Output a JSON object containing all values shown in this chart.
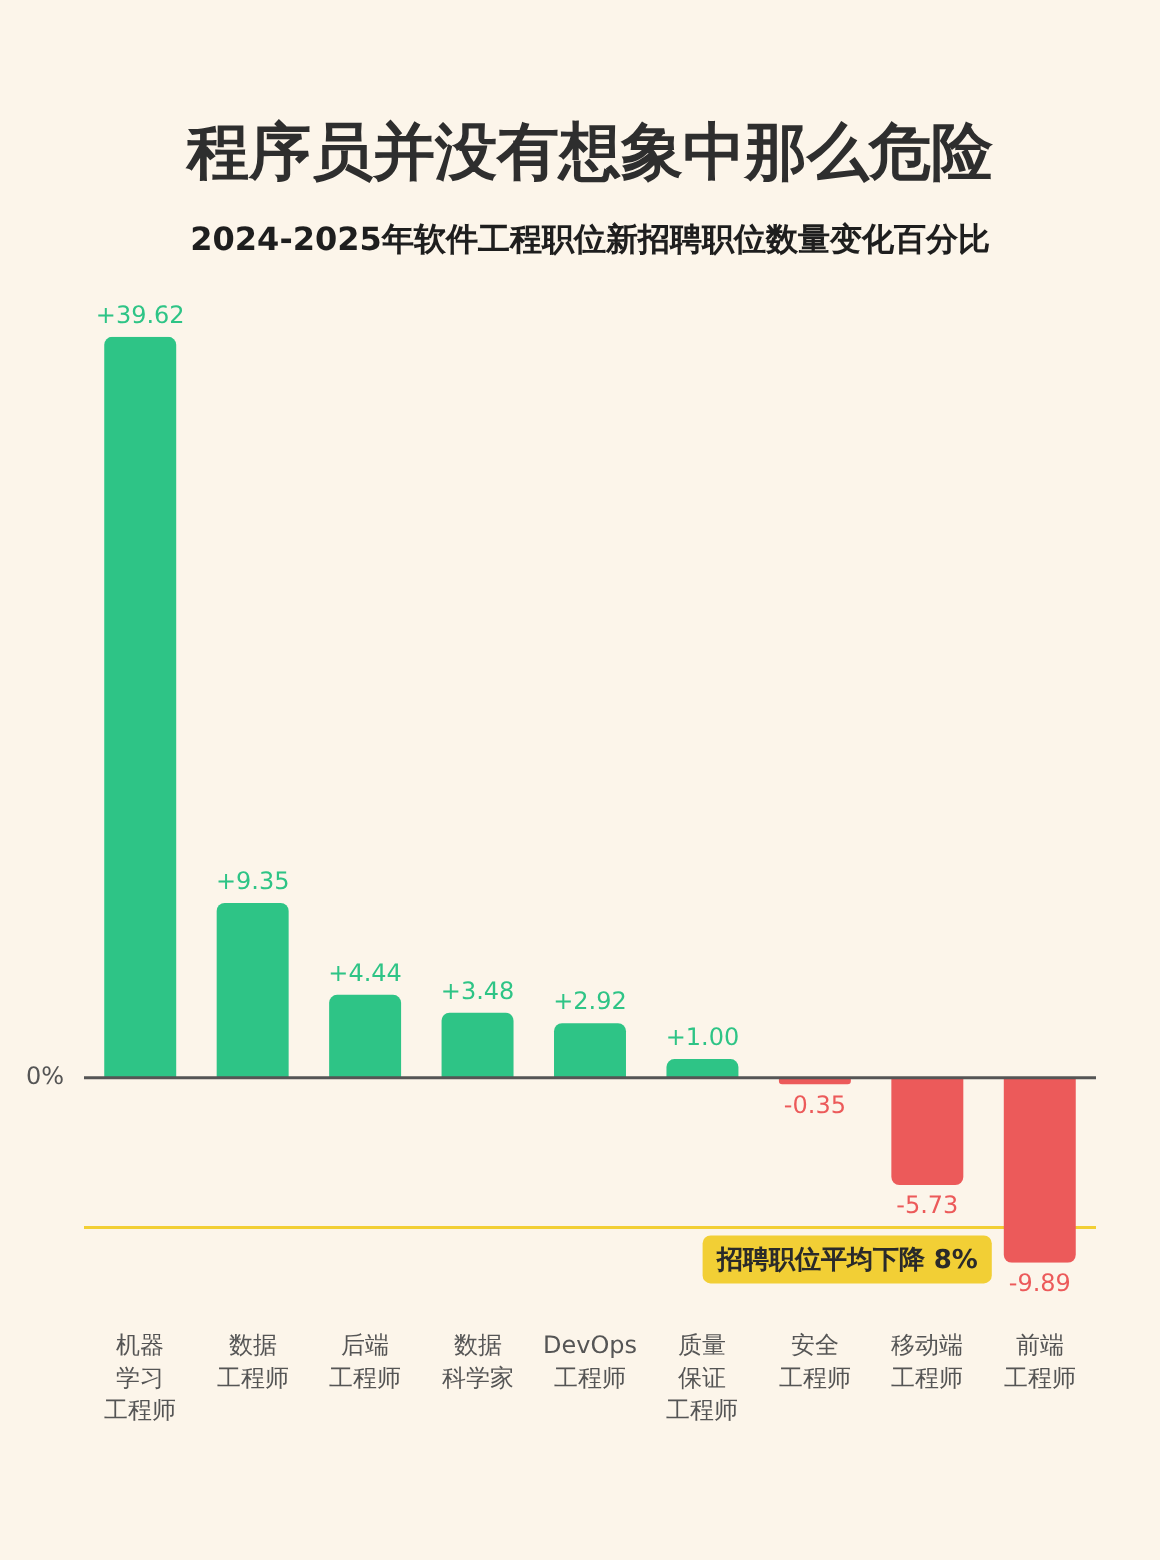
{
  "chart_data": {
    "type": "bar",
    "title": "程序员并没有想象中那么危险",
    "subtitle": "2024-2025年软件工程职位新招聘职位数量变化百分比",
    "categories": [
      "机器学习工程师",
      "数据工程师",
      "后端工程师",
      "数据科学家",
      "DevOps工程师",
      "质量保证工程师",
      "安全工程师",
      "移动端工程师",
      "前端工程师"
    ],
    "values": [
      39.62,
      9.35,
      4.44,
      3.48,
      2.92,
      1.0,
      -0.35,
      -5.73,
      -9.89
    ],
    "colors": [
      "#2ec486",
      "#2ec486",
      "#2ec486",
      "#2ec486",
      "#2ec486",
      "#2ec486",
      "#ec5a5a",
      "#ec5a5a",
      "#ec5a5a"
    ],
    "value_labels": [
      "+39.62",
      "+9.35",
      "+4.44",
      "+3.48",
      "+2.92",
      "+1.00",
      "-0.35",
      "-5.73",
      "-9.89"
    ],
    "annotations": [
      "0%"
    ],
    "ref_lines": [
      {
        "axis": "y",
        "value": -8,
        "label": "招聘职位平均下降 8%",
        "color": "#f2cf35"
      }
    ]
  }
}
